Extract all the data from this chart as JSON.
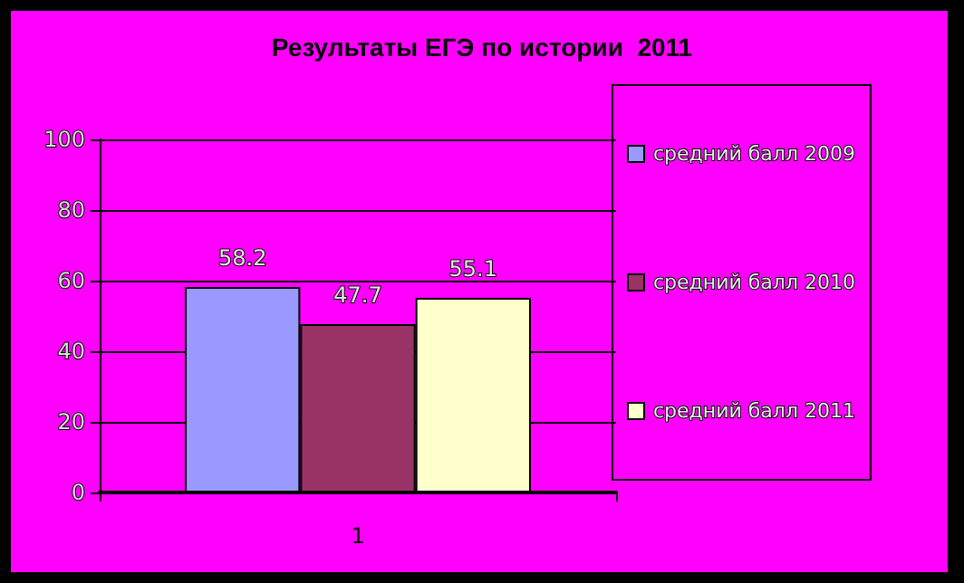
{
  "chart_data": {
    "type": "bar",
    "title": "Результаты ЕГЭ по истории  2011",
    "categories": [
      "1"
    ],
    "series": [
      {
        "name": "средний балл 2009",
        "color": "#9999ff",
        "values": [
          58.2
        ]
      },
      {
        "name": "средний балл 2010",
        "color": "#993366",
        "values": [
          47.7
        ]
      },
      {
        "name": "средний балл 2011",
        "color": "#ffffcc",
        "values": [
          55.1
        ]
      }
    ],
    "ylim": [
      0,
      100
    ],
    "yticks": [
      0,
      20,
      40,
      60,
      80,
      100
    ],
    "grid": "y",
    "legend": "right",
    "data_labels": true
  }
}
